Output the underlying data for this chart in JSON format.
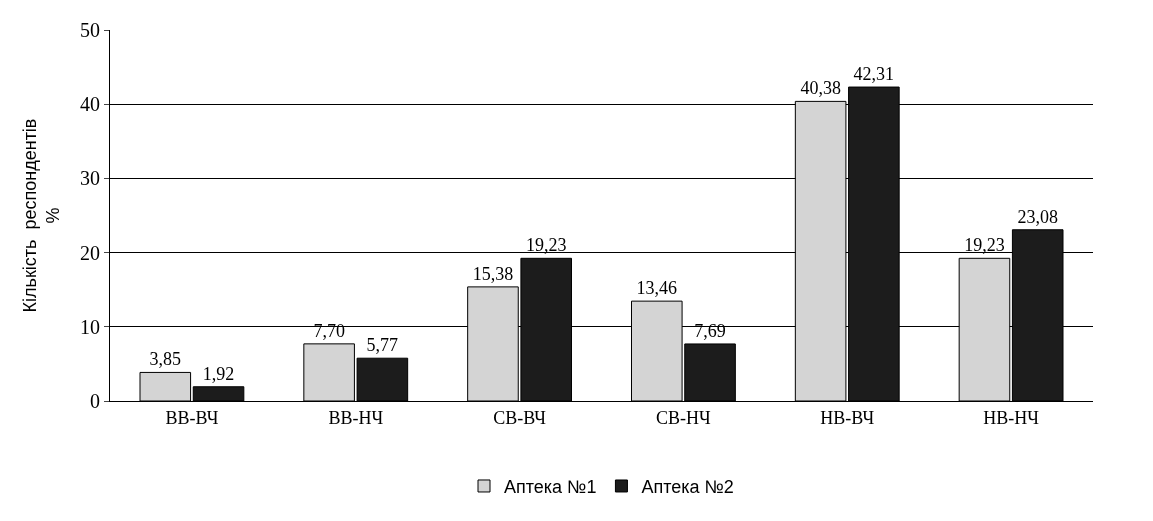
{
  "chart_data": {
    "type": "bar",
    "ylabel": "Кількість  респондентів\n%",
    "categories": [
      "ВВ-ВЧ",
      "ВВ-НЧ",
      "СВ-ВЧ",
      "СВ-НЧ",
      "НВ-ВЧ",
      "НВ-НЧ"
    ],
    "series": [
      {
        "name": "Аптека №1",
        "color": "#d4d4d4",
        "values": [
          3.85,
          7.7,
          15.38,
          13.46,
          40.38,
          19.23
        ],
        "value_labels": [
          "3,85",
          "7,70",
          "15,38",
          "13,46",
          "40,38",
          "19,23"
        ]
      },
      {
        "name": "Аптека №2",
        "color": "#1c1c1c",
        "values": [
          1.92,
          5.77,
          19.23,
          7.69,
          42.31,
          23.08
        ],
        "value_labels": [
          "1,92",
          "5,77",
          "19,23",
          "7,69",
          "42,31",
          "23,08"
        ]
      }
    ],
    "ylim": [
      0,
      50
    ],
    "yticks": [
      0,
      10,
      20,
      30,
      40,
      50
    ],
    "grid": "y",
    "legend": "bottom"
  }
}
